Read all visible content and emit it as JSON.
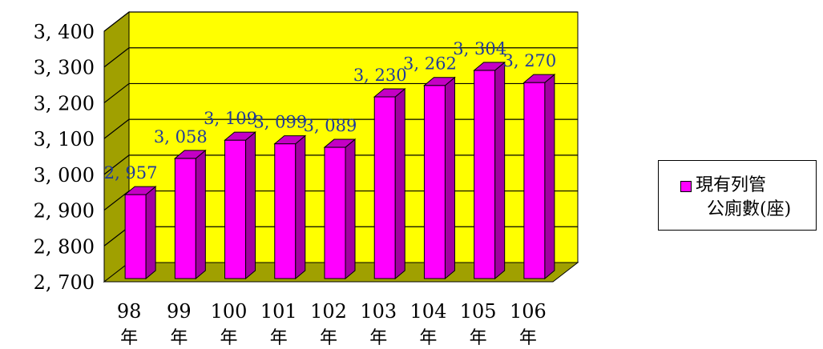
{
  "chart_data": {
    "type": "bar",
    "categories": [
      "98\n年",
      "99\n年",
      "100\n年",
      "101\n年",
      "102\n年",
      "103\n年",
      "104\n年",
      "105\n年",
      "106\n年"
    ],
    "series": [
      {
        "name": "現有列管公廁數(座)",
        "values": [
          2957,
          3058,
          3109,
          3099,
          3089,
          3230,
          3262,
          3304,
          3270
        ]
      }
    ],
    "data_labels": [
      "2, 957",
      "3, 058",
      "3, 109",
      "3, 099",
      "3, 089",
      "3, 230",
      "3, 262",
      "3, 304",
      "3, 270"
    ],
    "y_ticks": [
      "2, 700",
      "2, 800",
      "2, 900",
      "3, 000",
      "3, 100",
      "3, 200",
      "3, 300",
      "3, 400"
    ],
    "ylim": [
      2700,
      3400
    ],
    "grid": true,
    "legend_position": "right",
    "colors": {
      "bar": "#ff00ff",
      "bar_side": "#a000a0",
      "bar_top": "#c400c4",
      "wall": "#ffff00",
      "wall_side": "#a0a000",
      "label": "#1f3a9c"
    },
    "legend_lines": [
      "現有列管",
      "公廁數(座)"
    ]
  }
}
